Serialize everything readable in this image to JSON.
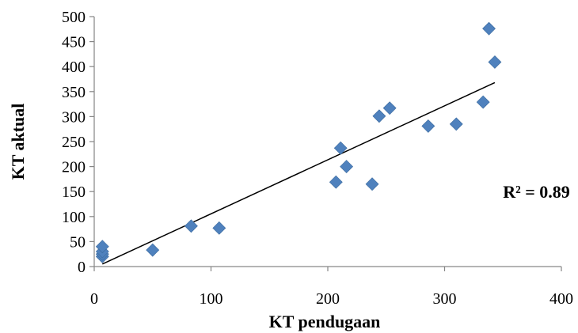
{
  "chart_data": {
    "type": "scatter",
    "xlabel": "KT pendugaan",
    "ylabel": "KT aktual",
    "xlim": [
      0,
      400
    ],
    "ylim": [
      0,
      500
    ],
    "x_ticks": [
      0,
      100,
      200,
      300,
      400
    ],
    "y_ticks": [
      0,
      50,
      100,
      150,
      200,
      250,
      300,
      350,
      400,
      450,
      500
    ],
    "grid": false,
    "marker": "diamond",
    "marker_color": "#4F81BD",
    "trendline_color": "#000000",
    "series": [
      {
        "points": [
          {
            "x": 7,
            "y": 20
          },
          {
            "x": 7,
            "y": 25
          },
          {
            "x": 7,
            "y": 30
          },
          {
            "x": 7,
            "y": 40
          },
          {
            "x": 50,
            "y": 33
          },
          {
            "x": 83,
            "y": 81
          },
          {
            "x": 107,
            "y": 77
          },
          {
            "x": 207,
            "y": 169
          },
          {
            "x": 211,
            "y": 237
          },
          {
            "x": 216,
            "y": 200
          },
          {
            "x": 238,
            "y": 165
          },
          {
            "x": 244,
            "y": 301
          },
          {
            "x": 253,
            "y": 317
          },
          {
            "x": 286,
            "y": 281
          },
          {
            "x": 310,
            "y": 285
          },
          {
            "x": 333,
            "y": 329
          },
          {
            "x": 338,
            "y": 476
          },
          {
            "x": 343,
            "y": 409
          }
        ]
      }
    ],
    "trendline": {
      "x": [
        7,
        343
      ],
      "y": [
        5,
        368
      ]
    },
    "annotations": [
      {
        "text": "R² = 0.89",
        "x": 350,
        "y": 150
      }
    ]
  }
}
